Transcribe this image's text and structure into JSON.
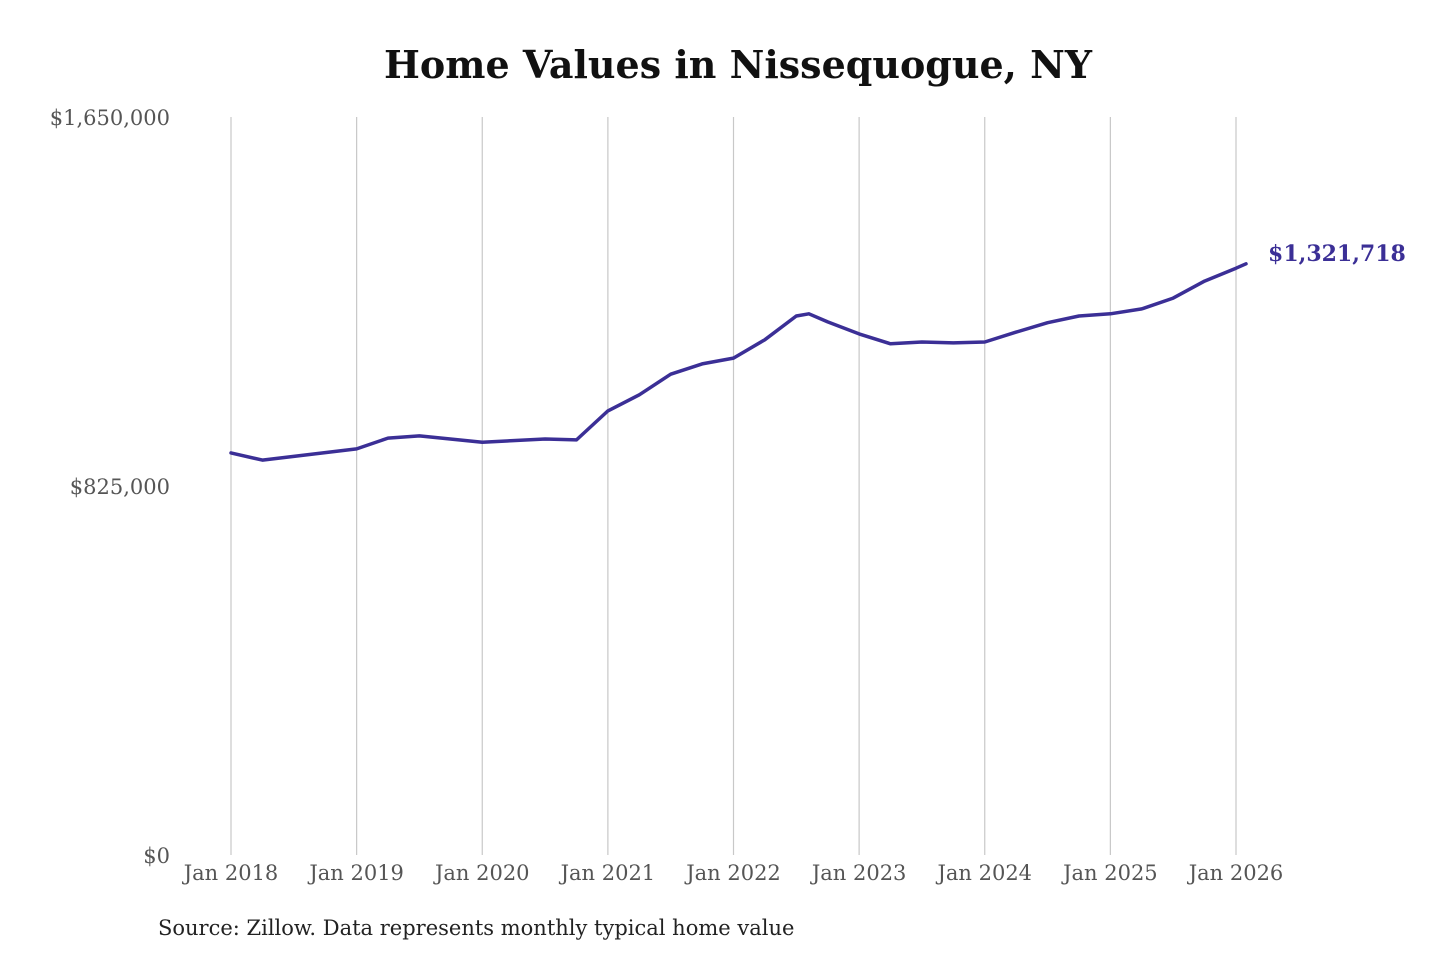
{
  "chart_data": {
    "type": "line",
    "title": "Home Values in Nissequogue, NY",
    "source": "Source: Zillow. Data represents monthly typical home value",
    "xlabel": "",
    "ylabel": "",
    "ylim": [
      0,
      1650000
    ],
    "y_ticks": [
      "$0",
      "$825,000",
      "$1,650,000"
    ],
    "y_tick_values": [
      0,
      825000,
      1650000
    ],
    "x_ticks": [
      "Jan 2018",
      "Jan 2019",
      "Jan 2020",
      "Jan 2021",
      "Jan 2022",
      "Jan 2023",
      "Jan 2024",
      "Jan 2025",
      "Jan 2026"
    ],
    "x_tick_values": [
      2018,
      2019,
      2020,
      2021,
      2022,
      2023,
      2024,
      2025,
      2026
    ],
    "grid": "vertical",
    "end_label": "$1,321,718",
    "line_color": "#3b2f96",
    "series": [
      {
        "name": "Typical home value",
        "x": [
          2018.0,
          2018.25,
          2019.0,
          2019.25,
          2019.5,
          2020.0,
          2020.5,
          2020.75,
          2021.0,
          2021.25,
          2021.5,
          2021.75,
          2022.0,
          2022.25,
          2022.5,
          2022.6,
          2022.75,
          2023.0,
          2023.25,
          2023.5,
          2023.75,
          2024.0,
          2024.25,
          2024.5,
          2024.75,
          2025.0,
          2025.25,
          2025.5,
          2025.75,
          2026.0,
          2026.08
        ],
        "values": [
          899000,
          883000,
          908000,
          932000,
          937000,
          923000,
          930000,
          928000,
          993000,
          1029000,
          1075000,
          1098000,
          1111000,
          1152000,
          1205000,
          1210000,
          1192000,
          1165000,
          1143000,
          1147000,
          1145000,
          1147000,
          1169000,
          1190000,
          1205000,
          1210000,
          1221000,
          1245000,
          1283000,
          1312000,
          1321718
        ]
      }
    ]
  }
}
